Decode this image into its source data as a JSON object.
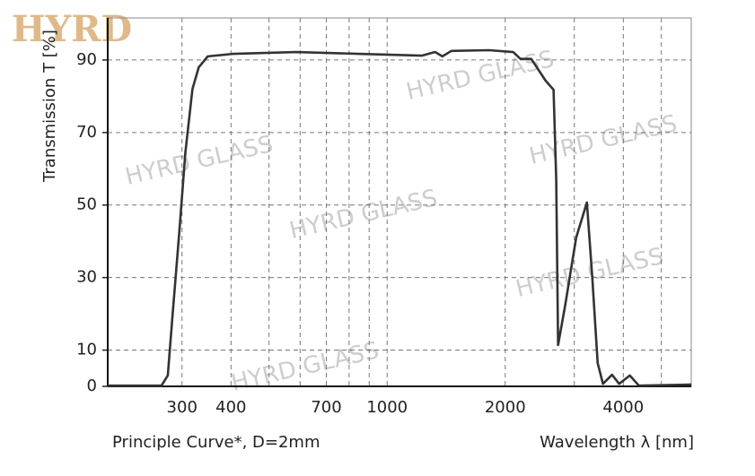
{
  "logo": "HYRD",
  "watermark": "HYRD GLASS",
  "chart_data": {
    "type": "line",
    "y_label": "Transmission T [%]",
    "x_label": "Wavelength λ [nm]",
    "caption": "Principle Curve*, D=2mm",
    "x_log": true,
    "xlim": [
      194,
      5960
    ],
    "ylim": [
      0,
      101.6
    ],
    "xticks": [
      300,
      400,
      700,
      1000,
      2000,
      4000
    ],
    "xgrid": [
      300,
      400,
      500,
      600,
      700,
      800,
      900,
      1000,
      2000,
      3000,
      4000,
      5000
    ],
    "yticks": [
      0,
      10,
      30,
      50,
      70,
      90
    ],
    "grid": true,
    "series": [
      {
        "color": "#333333",
        "x": [
          194,
          266,
          276,
          284,
          295,
          306,
          319,
          331,
          349,
          405,
          586,
          847,
          1225,
          1325,
          1383,
          1458,
          1820,
          2096,
          2187,
          2330,
          2535,
          2656,
          2698,
          2728,
          2845,
          3033,
          3230,
          3334,
          3441,
          3550,
          3743,
          3903,
          4155,
          4383,
          5960
        ],
        "values": [
          0.2,
          0.2,
          3,
          20,
          42,
          64.5,
          82,
          88,
          91,
          91.7,
          92.2,
          91.7,
          91.2,
          92.2,
          91,
          92.5,
          92.7,
          92.2,
          90.3,
          90.3,
          84.3,
          81.8,
          57,
          11.4,
          22.5,
          41,
          50.7,
          30,
          6.4,
          0.7,
          3.2,
          0.7,
          3,
          0.2,
          0.5
        ]
      }
    ]
  }
}
